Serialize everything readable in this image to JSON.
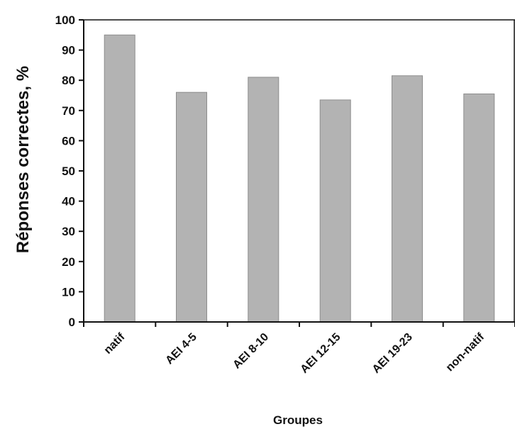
{
  "chart_data": {
    "type": "bar",
    "title": "",
    "xlabel": "Groupes",
    "ylabel": "Réponses correctes, %",
    "categories": [
      "natif",
      "AEI 4-5",
      "AEI 8-10",
      "AEI 12-15",
      "AEI 19-23",
      "non-natif"
    ],
    "values": [
      95,
      76,
      81,
      73.5,
      81.5,
      75.5
    ],
    "ylim": [
      0,
      100
    ],
    "yticks": [
      0,
      10,
      20,
      30,
      40,
      50,
      60,
      70,
      80,
      90,
      100
    ],
    "grid": false,
    "legend": "none",
    "colors": {
      "bar_fill": "#b3b3b3",
      "bar_stroke": "#8c8c8c",
      "axis": "#111111"
    }
  }
}
